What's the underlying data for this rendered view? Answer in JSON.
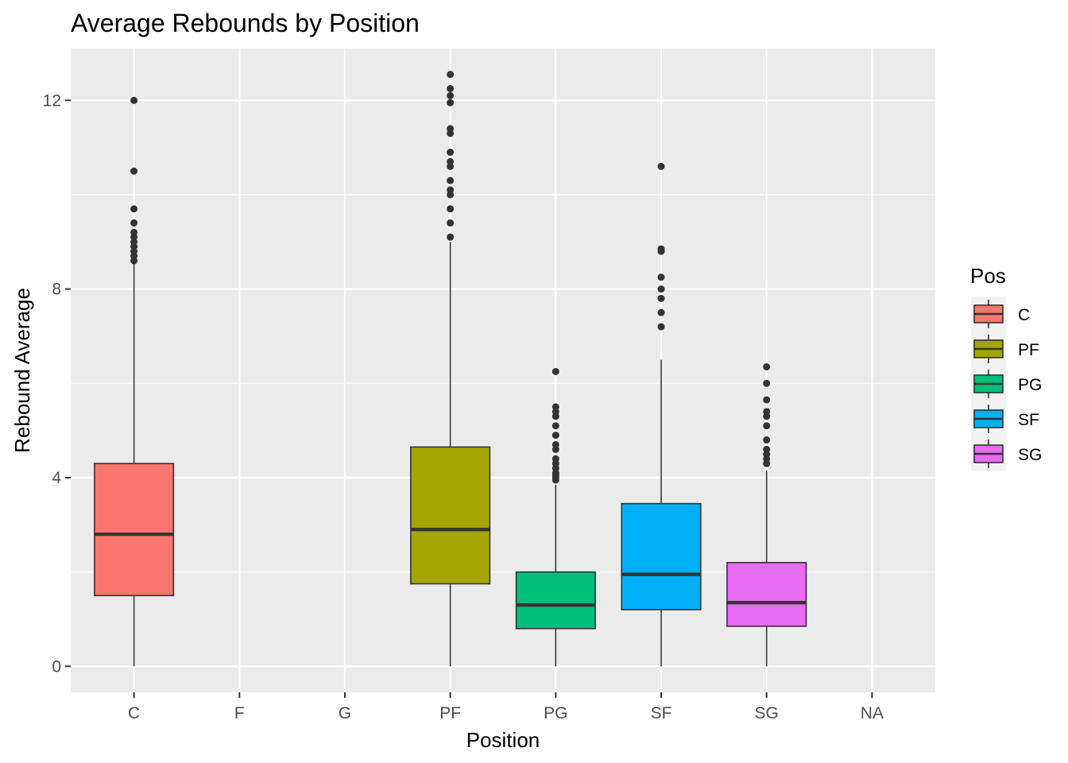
{
  "chart_data": {
    "type": "boxplot",
    "title": "Average Rebounds by Position",
    "xlabel": "Position",
    "ylabel": "Rebound Average",
    "categories": [
      "C",
      "F",
      "G",
      "PF",
      "PG",
      "SF",
      "SG",
      "NA"
    ],
    "ylim": [
      -0.55,
      13.1
    ],
    "yticks": [
      0,
      4,
      8,
      12
    ],
    "grid": true,
    "legend": {
      "title": "Pos",
      "position": "right"
    },
    "series": [
      {
        "name": "C",
        "color": "#F8766D",
        "min": 0,
        "q1": 1.5,
        "median": 2.8,
        "q3": 4.3,
        "max": 8.6,
        "outliers": [
          8.6,
          8.7,
          8.8,
          8.9,
          9.0,
          9.1,
          9.2,
          9.4,
          9.7,
          10.5,
          12.0
        ]
      },
      {
        "name": "PF",
        "color": "#A3A500",
        "min": 0,
        "q1": 1.75,
        "median": 2.9,
        "q3": 4.65,
        "max": 9.0,
        "outliers": [
          9.1,
          9.4,
          9.7,
          10.0,
          10.1,
          10.3,
          10.6,
          10.7,
          10.9,
          11.3,
          11.4,
          11.95,
          12.1,
          12.25,
          12.55
        ]
      },
      {
        "name": "PG",
        "color": "#00BF7D",
        "min": 0,
        "q1": 0.8,
        "median": 1.3,
        "q3": 2.0,
        "max": 3.85,
        "outliers": [
          3.95,
          4.0,
          4.05,
          4.1,
          4.2,
          4.3,
          4.4,
          4.6,
          4.7,
          4.9,
          5.1,
          5.3,
          5.4,
          5.5,
          6.25
        ]
      },
      {
        "name": "SF",
        "color": "#00B0F6",
        "min": 0,
        "q1": 1.2,
        "median": 1.95,
        "q3": 3.45,
        "max": 6.5,
        "outliers": [
          7.2,
          7.5,
          7.8,
          8.0,
          8.25,
          8.8,
          8.85,
          10.6
        ]
      },
      {
        "name": "SG",
        "color": "#E76BF3",
        "min": 0,
        "q1": 0.85,
        "median": 1.35,
        "q3": 2.2,
        "max": 4.15,
        "outliers": [
          4.3,
          4.4,
          4.5,
          4.6,
          4.8,
          5.1,
          5.3,
          5.4,
          5.65,
          6.0,
          6.35
        ]
      }
    ]
  }
}
